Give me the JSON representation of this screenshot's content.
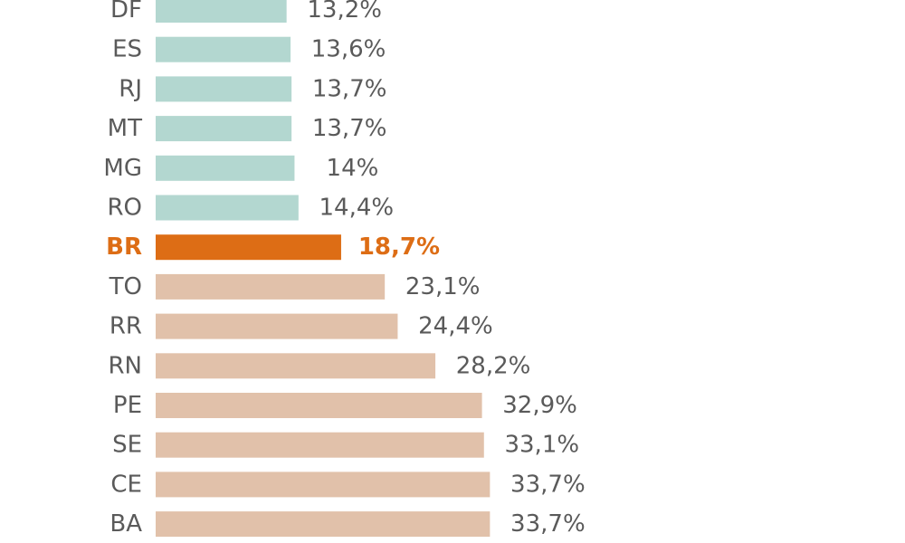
{
  "chart_data": {
    "type": "bar",
    "orientation": "horizontal",
    "categories": [
      "DF",
      "ES",
      "RJ",
      "MT",
      "MG",
      "RO",
      "BR",
      "TO",
      "RR",
      "RN",
      "PE",
      "SE",
      "CE",
      "BA"
    ],
    "values": [
      13.2,
      13.6,
      13.7,
      13.7,
      14,
      14.4,
      18.7,
      23.1,
      24.4,
      28.2,
      32.9,
      33.1,
      33.7,
      33.7
    ],
    "value_labels": [
      "13,2%",
      "13,6%",
      "13,7%",
      "13,7%",
      "14%",
      "14,4%",
      "18,7%",
      "23,1%",
      "24,4%",
      "28,2%",
      "32,9%",
      "33,1%",
      "33,7%",
      "33,7%"
    ],
    "highlight_category": "BR",
    "xlim": [
      0,
      35
    ],
    "grid": false,
    "title": "",
    "xlabel": "",
    "ylabel": "",
    "colors": {
      "below": "#b3d7d0",
      "highlight": "#dd6d15",
      "above": "#e1c1aa",
      "label_text": "#5a5a5a",
      "highlight_text": "#dd6d15"
    }
  }
}
